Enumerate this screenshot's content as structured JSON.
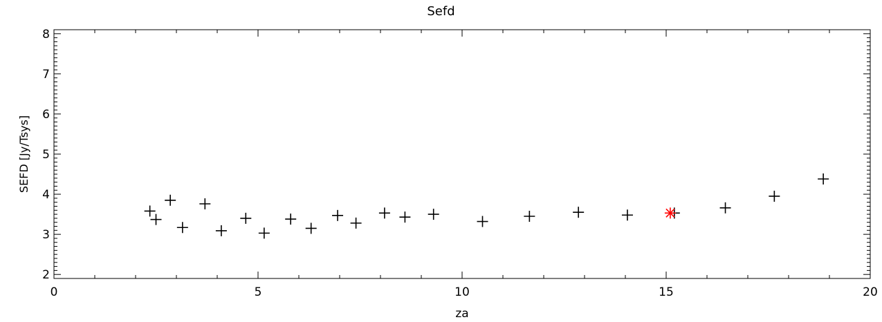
{
  "chart_data": {
    "type": "scatter",
    "title": "Sefd",
    "xlabel": "za",
    "ylabel": "SEFD [Jy/Tsys]",
    "xlim": [
      0,
      20
    ],
    "ylim": [
      1.9,
      8.1
    ],
    "x_ticks": [
      "0",
      "5",
      "10",
      "15",
      "20"
    ],
    "y_ticks": [
      "2",
      "3",
      "4",
      "5",
      "6",
      "7",
      "8"
    ],
    "grid": false,
    "series": [
      {
        "marker": "plus",
        "color": "#000000",
        "points": [
          [
            2.35,
            3.58
          ],
          [
            2.5,
            3.37
          ],
          [
            2.85,
            3.85
          ],
          [
            3.15,
            3.17
          ],
          [
            3.7,
            3.76
          ],
          [
            4.1,
            3.09
          ],
          [
            4.7,
            3.4
          ],
          [
            5.15,
            3.03
          ],
          [
            5.8,
            3.38
          ],
          [
            6.3,
            3.15
          ],
          [
            6.95,
            3.47
          ],
          [
            7.4,
            3.28
          ],
          [
            8.1,
            3.53
          ],
          [
            8.6,
            3.43
          ],
          [
            9.3,
            3.5
          ],
          [
            10.5,
            3.32
          ],
          [
            11.65,
            3.45
          ],
          [
            12.85,
            3.55
          ],
          [
            14.05,
            3.48
          ],
          [
            15.2,
            3.53
          ],
          [
            16.45,
            3.66
          ],
          [
            17.65,
            3.95
          ],
          [
            18.85,
            4.38
          ]
        ]
      },
      {
        "marker": "asterisk",
        "color": "#ff0000",
        "points": [
          [
            15.1,
            3.53
          ]
        ]
      }
    ]
  }
}
